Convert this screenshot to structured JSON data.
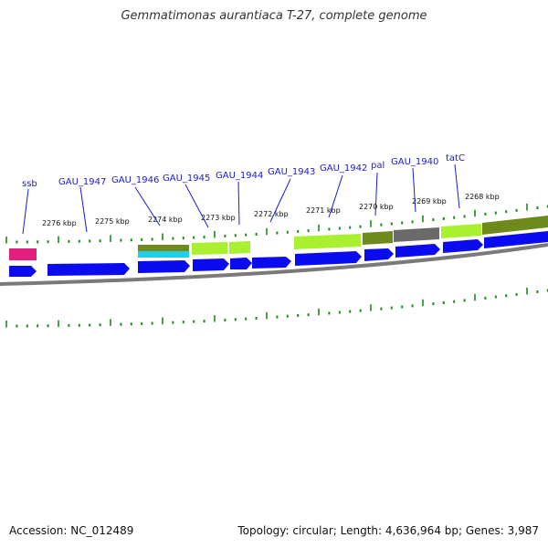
{
  "title": "Gemmatimonas aurantiaca T-27, complete genome",
  "footer": {
    "accession": "Accession: NC_012489",
    "summary": "Topology: circular; Length: 4,636,964 bp; Genes: 3,987"
  },
  "colors": {
    "cds_blue": "#0b0bf0",
    "lime": "#a8f030",
    "olive": "#6e8a1c",
    "gray": "#6a6a6a",
    "magenta": "#e0207a",
    "cyan": "#20d0e8",
    "tick_green": "#1a8a1a",
    "label_line_blue": "#1a1ad6",
    "backbone_gray": "#7a7a7a"
  },
  "gene_labels": [
    "ssb",
    "GAU_1947",
    "GAU_1946",
    "GAU_1945",
    "GAU_1944",
    "GAU_1943",
    "GAU_1942",
    "pal",
    "GAU_1940",
    "tatC"
  ],
  "kbp_labels": [
    "2276 kbp",
    "2275 kbp",
    "2274 kbp",
    "2273 kbp",
    "2272 kbp",
    "2271 kbp",
    "2270 kbp",
    "2269 kbp",
    "2268 kbp"
  ]
}
